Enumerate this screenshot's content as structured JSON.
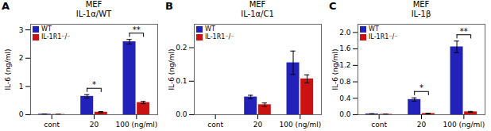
{
  "chart_data": [
    {
      "type": "bar",
      "title": "MEF\nIL-1α/WT",
      "panel_label": "A",
      "categories": [
        "cont",
        "20",
        "100 (ng/ml)"
      ],
      "series": [
        {
          "name": "WT",
          "color": "#2222bb",
          "values": [
            0.02,
            0.65,
            2.58
          ],
          "errors": [
            0.005,
            0.06,
            0.08
          ]
        },
        {
          "name": "IL-1R1⁻/⁻",
          "color": "#cc1111",
          "values": [
            0.01,
            0.09,
            0.43
          ],
          "errors": [
            0.005,
            0.02,
            0.04
          ]
        }
      ],
      "ylabel": "IL-6 (ng/ml)",
      "ylim": [
        0,
        3.2
      ],
      "yticks": [
        0,
        1,
        2,
        3
      ],
      "annotations": [
        {
          "category": "20",
          "text": "*"
        },
        {
          "category": "100 (ng/ml)",
          "text": "**"
        }
      ],
      "legend": "upper left"
    },
    {
      "type": "bar",
      "title": "MEF\nIL-1α/C1",
      "panel_label": "B",
      "categories": [
        "cont",
        "20",
        "100 (ng/ml)"
      ],
      "series": [
        {
          "name": "WT",
          "color": "#2222bb",
          "values": [
            0.0,
            0.053,
            0.155
          ],
          "errors": [
            0.0,
            0.005,
            0.035
          ]
        },
        {
          "name": "IL-1R1⁻/⁻",
          "color": "#cc1111",
          "values": [
            0.0,
            0.03,
            0.107
          ],
          "errors": [
            0.0,
            0.005,
            0.012
          ]
        }
      ],
      "ylabel": "IL-6 (ng/ml)",
      "ylim": [
        0,
        0.27
      ],
      "yticks": [
        {
          "value": 0,
          "label": "0.0"
        },
        0.1,
        0.2
      ],
      "legend": "upper left"
    },
    {
      "type": "bar",
      "title": "MEF\nIL-1β",
      "panel_label": "C",
      "categories": [
        "cont",
        "20",
        "100 (ng/ml)"
      ],
      "series": [
        {
          "name": "WT",
          "color": "#2222bb",
          "values": [
            0.02,
            0.37,
            1.65
          ],
          "errors": [
            0.005,
            0.04,
            0.14
          ]
        },
        {
          "name": "IL-1R1⁻/⁻",
          "color": "#cc1111",
          "values": [
            0.01,
            0.03,
            0.07
          ],
          "errors": [
            0.005,
            0.005,
            0.01
          ]
        }
      ],
      "ylabel": "IL-6 (ng/ml)",
      "ylim": [
        0,
        2.2
      ],
      "yticks": [
        {
          "value": 0,
          "label": "0.0"
        },
        0.4,
        0.8,
        1.2,
        1.6,
        {
          "value": 2,
          "label": "2.0"
        }
      ],
      "annotations": [
        {
          "category": "20",
          "text": "*"
        },
        {
          "category": "100 (ng/ml)",
          "text": "**"
        }
      ],
      "legend": "upper left"
    }
  ]
}
